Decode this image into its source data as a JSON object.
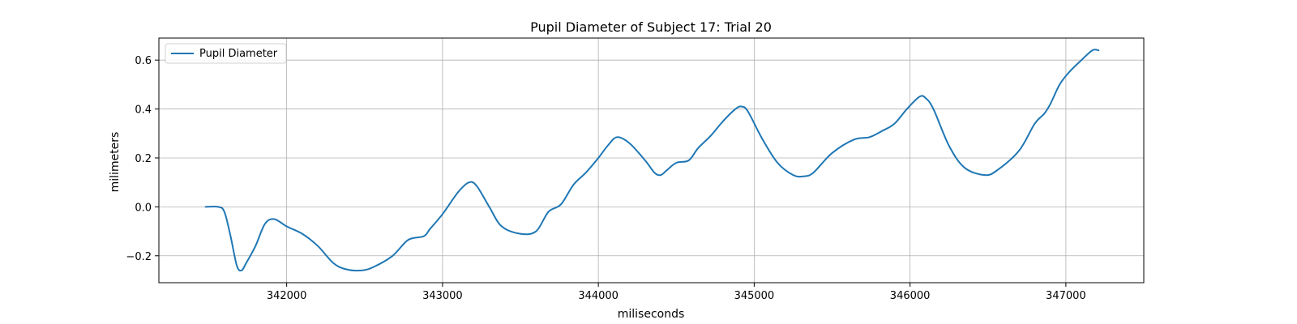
{
  "chart_data": {
    "type": "line",
    "title": "Pupil Diameter of Subject 17: Trial 20",
    "xlabel": "miliseconds",
    "ylabel": "milimeters",
    "xlim": [
      341180,
      347500
    ],
    "ylim": [
      -0.31,
      0.69
    ],
    "xticks": [
      342000,
      343000,
      344000,
      345000,
      346000,
      347000
    ],
    "yticks": [
      -0.2,
      0.0,
      0.2,
      0.4,
      0.6
    ],
    "ytick_labels": [
      "−0.2",
      "0.0",
      "0.2",
      "0.4",
      "0.6"
    ],
    "grid": true,
    "legend_position": "upper-left",
    "series": [
      {
        "name": "Pupil Diameter",
        "color": "#1f77b4",
        "x": [
          341480,
          341560,
          341600,
          341640,
          341680,
          341710,
          341740,
          341800,
          341860,
          341920,
          342000,
          342100,
          342200,
          342300,
          342380,
          342480,
          342560,
          342680,
          342780,
          342880,
          342920,
          343000,
          343100,
          343170,
          343220,
          343300,
          343380,
          343500,
          343600,
          343680,
          343760,
          343840,
          343920,
          344000,
          344060,
          344120,
          344200,
          344300,
          344360,
          344400,
          344440,
          344500,
          344580,
          344640,
          344720,
          344800,
          344880,
          344920,
          344960,
          345050,
          345150,
          345250,
          345320,
          345380,
          345500,
          345640,
          345740,
          345820,
          345900,
          345980,
          346060,
          346100,
          346150,
          346250,
          346350,
          346480,
          346560,
          346700,
          346800,
          346860,
          346900,
          346960,
          347020,
          347100,
          347170,
          347210
        ],
        "y": [
          0.0,
          0.0,
          -0.02,
          -0.12,
          -0.24,
          -0.26,
          -0.23,
          -0.16,
          -0.07,
          -0.05,
          -0.08,
          -0.11,
          -0.16,
          -0.23,
          -0.255,
          -0.26,
          -0.245,
          -0.2,
          -0.135,
          -0.12,
          -0.09,
          -0.03,
          0.06,
          0.1,
          0.085,
          0.0,
          -0.08,
          -0.11,
          -0.1,
          -0.02,
          0.01,
          0.09,
          0.14,
          0.2,
          0.25,
          0.285,
          0.26,
          0.19,
          0.14,
          0.13,
          0.15,
          0.18,
          0.19,
          0.24,
          0.29,
          0.35,
          0.4,
          0.41,
          0.39,
          0.28,
          0.18,
          0.13,
          0.125,
          0.14,
          0.22,
          0.275,
          0.285,
          0.31,
          0.34,
          0.4,
          0.45,
          0.445,
          0.4,
          0.25,
          0.16,
          0.13,
          0.15,
          0.23,
          0.34,
          0.38,
          0.42,
          0.5,
          0.55,
          0.6,
          0.64,
          0.64
        ]
      }
    ]
  }
}
